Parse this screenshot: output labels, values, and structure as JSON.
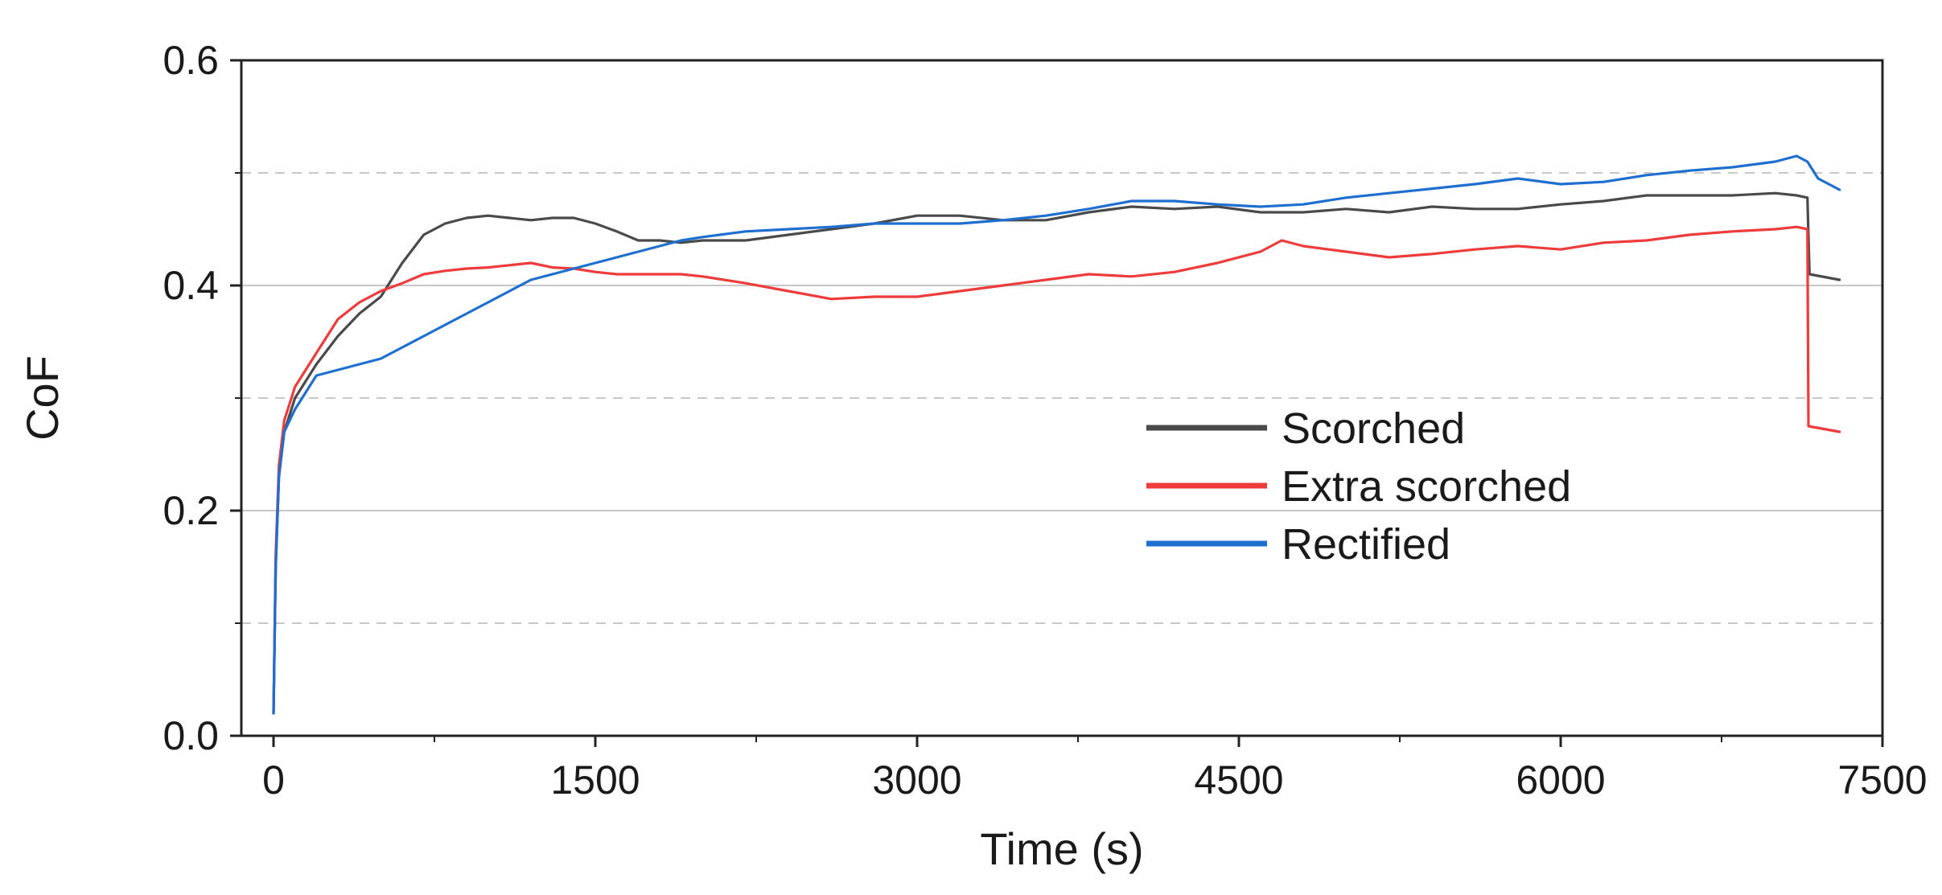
{
  "chart_data": {
    "type": "line",
    "title": "",
    "xlabel": "Time (s)",
    "ylabel": "CoF",
    "xlim": [
      -150,
      7500
    ],
    "ylim": [
      0,
      0.6
    ],
    "xticks": [
      "0",
      "1500",
      "3000",
      "4500",
      "6000",
      "7500"
    ],
    "xtick_values": [
      0,
      1500,
      3000,
      4500,
      6000,
      7500
    ],
    "yticks": [
      "0.0",
      "0.2",
      "0.4",
      "0.6"
    ],
    "ytick_values": [
      0,
      0.2,
      0.4,
      0.6
    ],
    "grid": {
      "solid_y": [
        0.2,
        0.4
      ],
      "dashed_y": [
        0.1,
        0.3,
        0.5
      ]
    },
    "legend_position": "center-right",
    "series": [
      {
        "name": "Scorched",
        "color": "#4a4a4a",
        "points": [
          [
            0,
            0.02
          ],
          [
            10,
            0.15
          ],
          [
            25,
            0.23
          ],
          [
            50,
            0.27
          ],
          [
            100,
            0.3
          ],
          [
            200,
            0.33
          ],
          [
            300,
            0.355
          ],
          [
            400,
            0.375
          ],
          [
            500,
            0.39
          ],
          [
            600,
            0.42
          ],
          [
            700,
            0.445
          ],
          [
            800,
            0.455
          ],
          [
            900,
            0.46
          ],
          [
            1000,
            0.462
          ],
          [
            1100,
            0.46
          ],
          [
            1200,
            0.458
          ],
          [
            1300,
            0.46
          ],
          [
            1400,
            0.46
          ],
          [
            1500,
            0.455
          ],
          [
            1600,
            0.448
          ],
          [
            1700,
            0.44
          ],
          [
            1800,
            0.44
          ],
          [
            1900,
            0.438
          ],
          [
            2000,
            0.44
          ],
          [
            2200,
            0.44
          ],
          [
            2400,
            0.445
          ],
          [
            2600,
            0.45
          ],
          [
            2800,
            0.455
          ],
          [
            3000,
            0.462
          ],
          [
            3200,
            0.462
          ],
          [
            3400,
            0.458
          ],
          [
            3600,
            0.458
          ],
          [
            3800,
            0.465
          ],
          [
            4000,
            0.47
          ],
          [
            4200,
            0.468
          ],
          [
            4400,
            0.47
          ],
          [
            4600,
            0.465
          ],
          [
            4800,
            0.465
          ],
          [
            5000,
            0.468
          ],
          [
            5200,
            0.465
          ],
          [
            5400,
            0.47
          ],
          [
            5600,
            0.468
          ],
          [
            5800,
            0.468
          ],
          [
            6000,
            0.472
          ],
          [
            6200,
            0.475
          ],
          [
            6400,
            0.48
          ],
          [
            6600,
            0.48
          ],
          [
            6800,
            0.48
          ],
          [
            7000,
            0.482
          ],
          [
            7100,
            0.48
          ],
          [
            7150,
            0.478
          ],
          [
            7160,
            0.41
          ],
          [
            7300,
            0.405
          ]
        ]
      },
      {
        "name": "Extra scorched",
        "color": "#ee3b3b",
        "points": [
          [
            0,
            0.02
          ],
          [
            10,
            0.16
          ],
          [
            25,
            0.24
          ],
          [
            50,
            0.28
          ],
          [
            100,
            0.31
          ],
          [
            200,
            0.34
          ],
          [
            300,
            0.37
          ],
          [
            400,
            0.385
          ],
          [
            500,
            0.395
          ],
          [
            600,
            0.402
          ],
          [
            700,
            0.41
          ],
          [
            800,
            0.413
          ],
          [
            900,
            0.415
          ],
          [
            1000,
            0.416
          ],
          [
            1100,
            0.418
          ],
          [
            1200,
            0.42
          ],
          [
            1300,
            0.416
          ],
          [
            1400,
            0.415
          ],
          [
            1500,
            0.412
          ],
          [
            1600,
            0.41
          ],
          [
            1700,
            0.41
          ],
          [
            1800,
            0.41
          ],
          [
            1900,
            0.41
          ],
          [
            2000,
            0.408
          ],
          [
            2200,
            0.402
          ],
          [
            2400,
            0.395
          ],
          [
            2600,
            0.388
          ],
          [
            2800,
            0.39
          ],
          [
            3000,
            0.39
          ],
          [
            3200,
            0.395
          ],
          [
            3400,
            0.4
          ],
          [
            3600,
            0.405
          ],
          [
            3800,
            0.41
          ],
          [
            4000,
            0.408
          ],
          [
            4200,
            0.412
          ],
          [
            4400,
            0.42
          ],
          [
            4600,
            0.43
          ],
          [
            4700,
            0.44
          ],
          [
            4800,
            0.435
          ],
          [
            5000,
            0.43
          ],
          [
            5200,
            0.425
          ],
          [
            5400,
            0.428
          ],
          [
            5600,
            0.432
          ],
          [
            5800,
            0.435
          ],
          [
            6000,
            0.432
          ],
          [
            6200,
            0.438
          ],
          [
            6400,
            0.44
          ],
          [
            6600,
            0.445
          ],
          [
            6800,
            0.448
          ],
          [
            7000,
            0.45
          ],
          [
            7100,
            0.452
          ],
          [
            7150,
            0.45
          ],
          [
            7155,
            0.275
          ],
          [
            7300,
            0.27
          ]
        ]
      },
      {
        "name": "Rectified",
        "color": "#1f6fd1",
        "points": [
          [
            0,
            0.02
          ],
          [
            10,
            0.15
          ],
          [
            25,
            0.23
          ],
          [
            50,
            0.27
          ],
          [
            100,
            0.29
          ],
          [
            200,
            0.32
          ],
          [
            300,
            0.325
          ],
          [
            400,
            0.33
          ],
          [
            500,
            0.335
          ],
          [
            600,
            0.345
          ],
          [
            700,
            0.355
          ],
          [
            800,
            0.365
          ],
          [
            900,
            0.375
          ],
          [
            1000,
            0.385
          ],
          [
            1100,
            0.395
          ],
          [
            1200,
            0.405
          ],
          [
            1300,
            0.41
          ],
          [
            1400,
            0.415
          ],
          [
            1500,
            0.42
          ],
          [
            1600,
            0.425
          ],
          [
            1700,
            0.43
          ],
          [
            1800,
            0.435
          ],
          [
            1900,
            0.44
          ],
          [
            2000,
            0.443
          ],
          [
            2200,
            0.448
          ],
          [
            2400,
            0.45
          ],
          [
            2600,
            0.452
          ],
          [
            2800,
            0.455
          ],
          [
            3000,
            0.455
          ],
          [
            3200,
            0.455
          ],
          [
            3400,
            0.458
          ],
          [
            3600,
            0.462
          ],
          [
            3800,
            0.468
          ],
          [
            4000,
            0.475
          ],
          [
            4200,
            0.475
          ],
          [
            4400,
            0.472
          ],
          [
            4600,
            0.47
          ],
          [
            4800,
            0.472
          ],
          [
            5000,
            0.478
          ],
          [
            5200,
            0.482
          ],
          [
            5400,
            0.486
          ],
          [
            5600,
            0.49
          ],
          [
            5800,
            0.495
          ],
          [
            6000,
            0.49
          ],
          [
            6200,
            0.492
          ],
          [
            6400,
            0.498
          ],
          [
            6600,
            0.502
          ],
          [
            6800,
            0.505
          ],
          [
            7000,
            0.51
          ],
          [
            7100,
            0.515
          ],
          [
            7150,
            0.51
          ],
          [
            7200,
            0.495
          ],
          [
            7300,
            0.485
          ]
        ]
      }
    ]
  }
}
